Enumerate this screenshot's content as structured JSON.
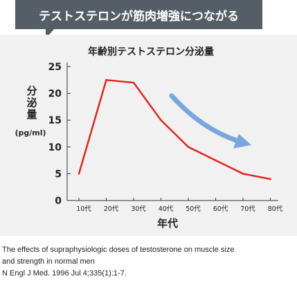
{
  "banner": {
    "text": "テストステロンが筋肉増強につながる"
  },
  "chart_data": {
    "type": "line",
    "title": "年齢別テストステロン分泌量",
    "xlabel": "年代",
    "ylabel": [
      "分",
      "泌",
      "量",
      "(pg/ml)"
    ],
    "categories": [
      "10代",
      "20代",
      "30代",
      "40代",
      "50代",
      "60代",
      "70代",
      "80代"
    ],
    "series": [
      {
        "values": [
          5,
          22.5,
          22,
          15,
          10,
          7.5,
          5,
          4
        ]
      }
    ],
    "yticks": [
      0,
      5,
      10,
      15,
      20,
      25
    ],
    "ylim": [
      0,
      25
    ],
    "grid": false,
    "line_color": "#e8231c",
    "arrow_color": "#7aa7db"
  },
  "caption": {
    "lines": [
      "The effects of supraphysiologic doses of testosterone on muscle size",
      "and strength in normal men",
      "N Engl J Med. 1996 Jul 4;335(1):1-7."
    ]
  }
}
